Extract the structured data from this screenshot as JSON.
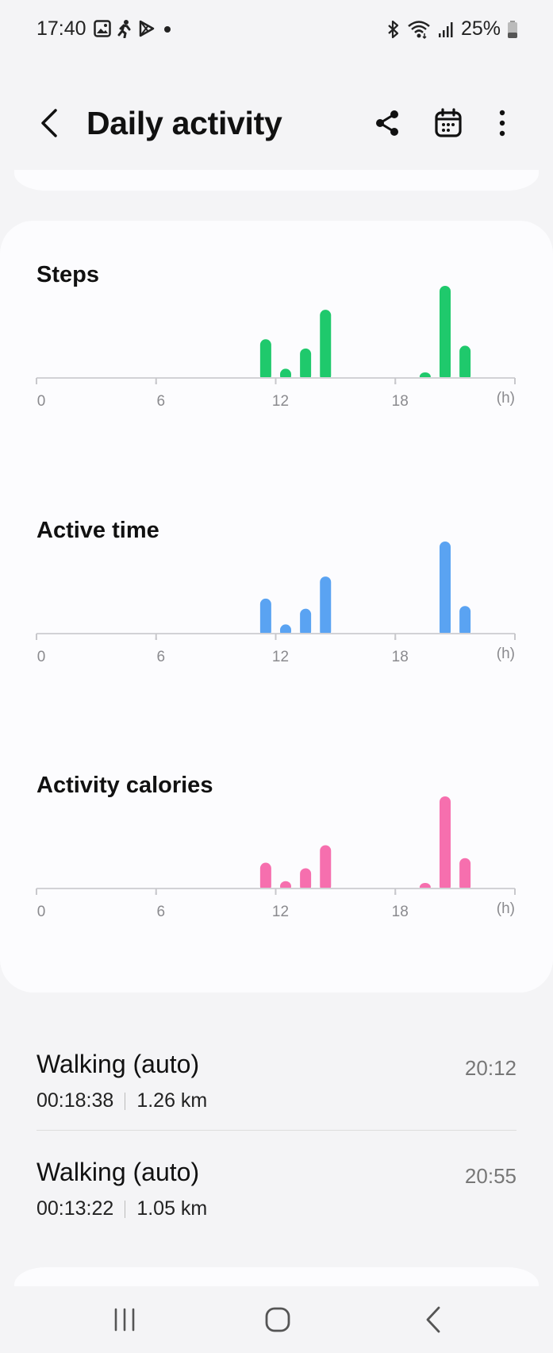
{
  "status_bar": {
    "time": "17:40",
    "left_icons": [
      "gallery-icon",
      "running-icon",
      "play-store-icon",
      "notification-dot-icon"
    ],
    "right_icons": [
      "bluetooth-icon",
      "wifi-icon",
      "signal-icon",
      "battery-icon"
    ],
    "battery": "25%"
  },
  "app_bar": {
    "title": "Daily activity",
    "actions": [
      "share-icon",
      "calendar-icon",
      "more-options-icon"
    ]
  },
  "charts": {
    "steps_title": "Steps",
    "active_title": "Active time",
    "calories_title": "Activity calories",
    "x_tick_labels": [
      "0",
      "6",
      "12",
      "18"
    ],
    "x_unit": "(h)"
  },
  "chart_data": [
    {
      "type": "bar",
      "title": "Steps",
      "x_unit": "h",
      "xlim": [
        0,
        24
      ],
      "x_ticks": [
        0,
        6,
        12,
        18
      ],
      "x": [
        11,
        12,
        13,
        14,
        19,
        20,
        21
      ],
      "values": [
        0.42,
        0.1,
        0.32,
        0.74,
        0.05,
        1.0,
        0.35
      ],
      "value_scale": "relative to tallest bar (no y-axis shown)",
      "color": "#1fc96c"
    },
    {
      "type": "bar",
      "title": "Active time",
      "x_unit": "h",
      "xlim": [
        0,
        24
      ],
      "x_ticks": [
        0,
        6,
        12,
        18
      ],
      "x": [
        11,
        12,
        13,
        14,
        20,
        21
      ],
      "values": [
        0.38,
        0.1,
        0.27,
        0.62,
        1.0,
        0.3
      ],
      "value_scale": "relative to tallest bar (no y-axis shown)",
      "color": "#5aa3f2"
    },
    {
      "type": "bar",
      "title": "Activity calories",
      "x_unit": "h",
      "xlim": [
        0,
        24
      ],
      "x_ticks": [
        0,
        6,
        12,
        18
      ],
      "x": [
        11,
        12,
        13,
        14,
        19,
        20,
        21
      ],
      "values": [
        0.28,
        0.08,
        0.22,
        0.47,
        0.05,
        1.0,
        0.33
      ],
      "value_scale": "relative to tallest bar (no y-axis shown)",
      "color": "#f66fae"
    }
  ],
  "workouts": [
    {
      "name": "Walking (auto)",
      "duration": "00:18:38",
      "distance": "1.26 km",
      "time": "20:12"
    },
    {
      "name": "Walking (auto)",
      "duration": "00:13:22",
      "distance": "1.05 km",
      "time": "20:55"
    }
  ],
  "nav_bar": [
    "recent-apps-icon",
    "home-icon",
    "back-icon"
  ]
}
